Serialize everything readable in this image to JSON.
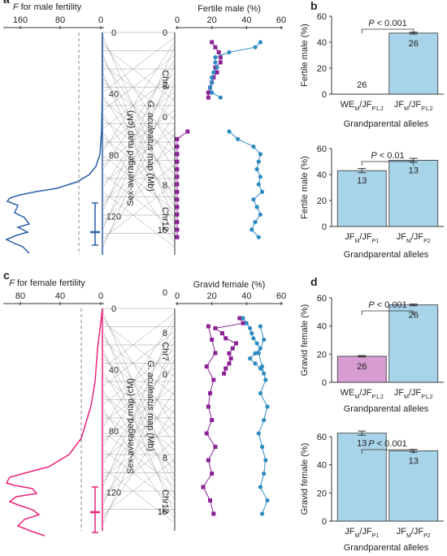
{
  "colors": {
    "blue": "#2a5fa8",
    "teal": "#2e8bc0",
    "purple": "#8b2196",
    "pink": "#e8247a",
    "lightblue": "#a8d4ea",
    "lightpink": "#d79cd1",
    "gray": "#9a9a9a"
  },
  "chart_data": [
    {
      "panel": "a",
      "type": "line",
      "xlabel_prefix": "F",
      "xlabel_rest": " for male fertility",
      "xlabel_mid": "Sex-averaged map (cM)",
      "xlabel_right": "Fertile male (%)",
      "axis_map_label": "G. aculeatus map (Mb)",
      "x_ticks_F": [
        "160",
        "80",
        "0"
      ],
      "x_ticks_pct": [
        "0",
        "20",
        "40",
        "60"
      ],
      "y_ticks_cM": [
        "0",
        "40",
        "80",
        "120"
      ],
      "chr_labels": [
        "Chr7",
        "Chr12"
      ],
      "mb_ticks": [
        "0",
        "8",
        "0",
        "8",
        "16"
      ],
      "F_profile_cM": [
        0,
        20,
        40,
        60,
        70,
        80,
        84,
        88,
        92,
        96,
        100,
        104,
        108,
        112,
        116,
        120,
        124,
        128,
        132,
        136,
        140
      ],
      "F_profile_val": [
        0,
        0,
        1,
        3,
        6,
        10,
        20,
        50,
        95,
        115,
        120,
        140,
        150,
        130,
        155,
        100,
        160,
        175,
        150,
        130,
        170
      ],
      "threshold_F": 40,
      "ci_cM": [
        107,
        124,
        145
      ],
      "chr7_mb": [
        0,
        1,
        2,
        3,
        4,
        5,
        6,
        7,
        8,
        9,
        10,
        11
      ],
      "chr7_family1": [
        20,
        22,
        24,
        25,
        25,
        22,
        23,
        21,
        20,
        19,
        18,
        18
      ],
      "chr7_family2": [
        48,
        45,
        30,
        22,
        22,
        23,
        21,
        20,
        20,
        19,
        20,
        25
      ],
      "chr12_mb": [
        0,
        2,
        4,
        6,
        8,
        9,
        10,
        11,
        12,
        13,
        14,
        15,
        16,
        17,
        18
      ],
      "chr12_family1": [
        6,
        0,
        0,
        0,
        0,
        0,
        0,
        0,
        0,
        0,
        0,
        0,
        0,
        0,
        0
      ],
      "chr12_family2": [
        30,
        35,
        44,
        48,
        47,
        46,
        48,
        47,
        49,
        44,
        46,
        48,
        45,
        43,
        47
      ]
    },
    {
      "panel": "b",
      "type": "bar",
      "title": "Grandparental alleles",
      "ylabel": "Fertile male (%)",
      "charts": [
        {
          "categories": [
            "WE_M/JF_P1,2",
            "JF_M/JF_P1,2"
          ],
          "values": [
            0,
            47
          ],
          "errors": [
            0,
            0.7
          ],
          "n": [
            "26",
            "26"
          ],
          "ylim": [
            0,
            60
          ],
          "yticks": [
            "0",
            "20",
            "40",
            "60"
          ],
          "pvalue": "< 0.001"
        },
        {
          "categories": [
            "JF_M/JF_P1",
            "JF_M/JF_P2"
          ],
          "values": [
            43,
            51
          ],
          "errors": [
            1.6,
            1.5
          ],
          "n": [
            "13",
            "13"
          ],
          "ylim": [
            0,
            60
          ],
          "yticks": [
            "0",
            "20",
            "40",
            "60"
          ],
          "pvalue": "< 0.01"
        }
      ]
    },
    {
      "panel": "c",
      "type": "line",
      "xlabel_prefix": "F",
      "xlabel_rest": " for female fertility",
      "xlabel_mid": "Sex-averaged map (cM)",
      "xlabel_right": "Gravid female (%)",
      "axis_map_label": "G. aculeatus map (Mb)",
      "x_ticks_F": [
        "80",
        "40",
        "0"
      ],
      "x_ticks_pct": [
        "0",
        "20",
        "40",
        "60"
      ],
      "y_ticks_cM": [
        "0",
        "40",
        "80",
        "120"
      ],
      "chr_labels": [
        "Chr7",
        "Chr12"
      ],
      "mb_ticks": [
        "0",
        "8",
        "0",
        "8",
        "16"
      ],
      "threshold_F": 25,
      "ci_cM": [
        97,
        115,
        140
      ],
      "chr7_family1": [
        36,
        38,
        22,
        26,
        28,
        34,
        32,
        30,
        31,
        30,
        28,
        27
      ],
      "chr7_family2": [
        38,
        40,
        42,
        43,
        44,
        46,
        48,
        45,
        42,
        45,
        48,
        50
      ],
      "chr12_family1": [
        18,
        20,
        22,
        17,
        21,
        19,
        18,
        20,
        17,
        22,
        18,
        20,
        15,
        19,
        21
      ],
      "chr12_family2": [
        48,
        50,
        47,
        49,
        51,
        48,
        52,
        50,
        47,
        49,
        51,
        50,
        48,
        52,
        49
      ]
    },
    {
      "panel": "d",
      "type": "bar",
      "title": "Grandparental alleles",
      "ylabel": "Gravid female (%)",
      "charts": [
        {
          "categories": [
            "WE_M/JF_P1,2",
            "JF_M/JF_P1,2"
          ],
          "values": [
            18.5,
            55
          ],
          "errors": [
            0.5,
            0.6
          ],
          "n": [
            "26",
            "26"
          ],
          "ylim": [
            0,
            60
          ],
          "yticks": [
            "0",
            "20",
            "40",
            "60"
          ],
          "pvalue": "< 0.001"
        },
        {
          "categories": [
            "JF_M/JF_P1",
            "JF_M/JF_P2"
          ],
          "values": [
            62.5,
            50
          ],
          "errors": [
            1.5,
            1.0
          ],
          "n": [
            "13",
            "13"
          ],
          "ylim": [
            0,
            60
          ],
          "yticks": [
            "0",
            "20",
            "40",
            "60"
          ],
          "pvalue": "< 0.001"
        }
      ]
    }
  ]
}
